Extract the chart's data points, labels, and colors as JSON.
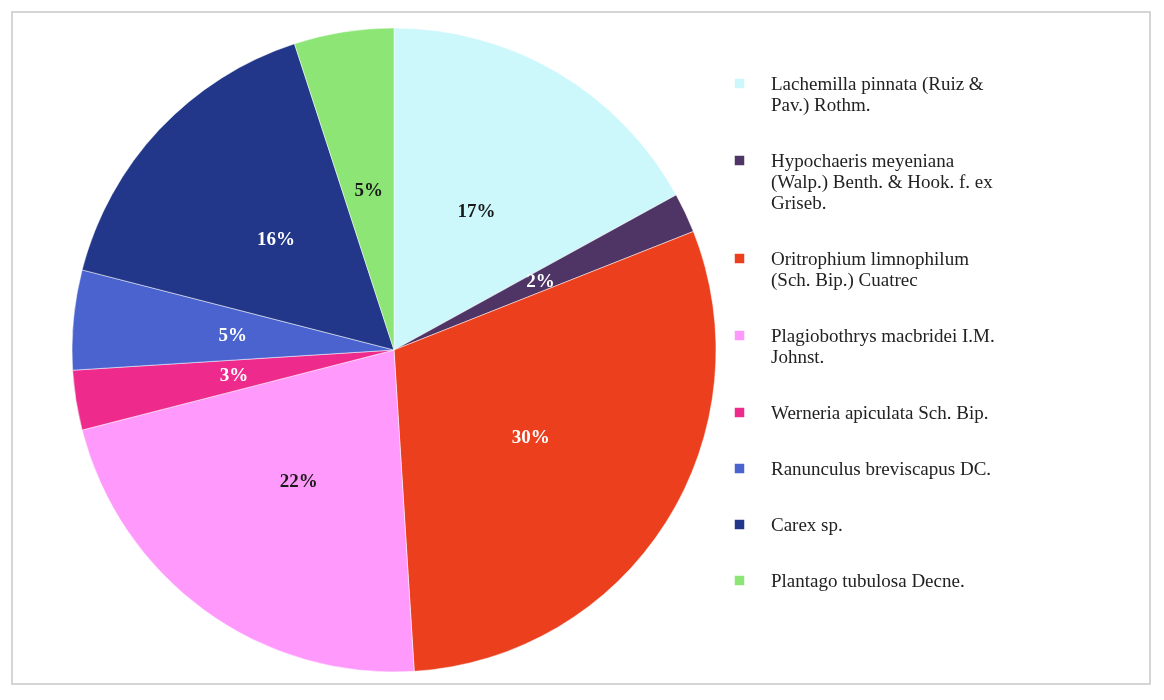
{
  "chart_data": {
    "type": "pie",
    "categories": [
      "Lachemilla pinnata (Ruiz & Pav.) Rothm.",
      "Hypochaeris meyeniana (Walp.) Benth. & Hook. f. ex Griseb.",
      "Oritrophium limnophilum (Sch. Bip.) Cuatrec",
      "Plagiobothrys macbridei I.M. Johnst.",
      "Werneria apiculata Sch. Bip.",
      "Ranunculus breviscapus DC.",
      "Carex sp.",
      "Plantago tubulosa Decne."
    ],
    "values": [
      17,
      2,
      30,
      22,
      3,
      5,
      16,
      5
    ],
    "colors": [
      "#ccf7fb",
      "#4e3566",
      "#ec3f1e",
      "#ff99fb",
      "#ee2a8c",
      "#4a63cf",
      "#22378a",
      "#8ce574"
    ],
    "value_labels": [
      "17%",
      "2%",
      "30%",
      "22%",
      "3%",
      "5%",
      "16%",
      "5%"
    ],
    "legend": "right"
  }
}
